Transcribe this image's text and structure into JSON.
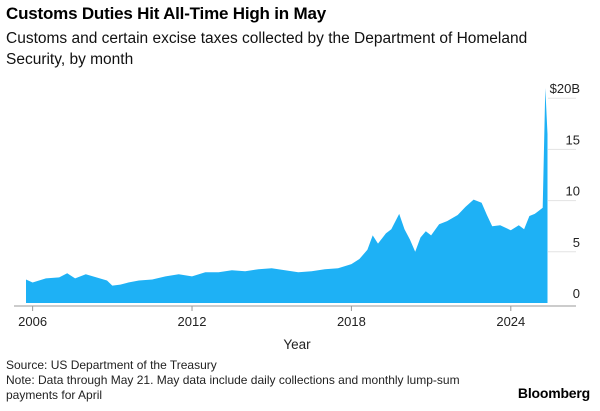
{
  "title": "Customs Duties Hit All-Time High in May",
  "subtitle": "Customs and certain excise taxes collected by the Department of Homeland Security, by month",
  "source": "Source: US Department of the Treasury",
  "note": "Note: Data through May 21. May data include daily collections and monthly lump-sum payments for April",
  "brand": "Bloomberg",
  "colors": {
    "area": "#1EB1F5",
    "grid": "#E3E3E3",
    "axis": "#999999"
  },
  "chart_data": {
    "type": "area",
    "title": "Customs Duties Hit All-Time High in May",
    "subtitle": "Customs and certain excise taxes collected by the Department of Homeland Security, by month",
    "xlabel": "Year",
    "ylabel": "",
    "xlim": [
      2005.6,
      2025.4
    ],
    "ylim": [
      0,
      21
    ],
    "x_ticks": [
      2006,
      2012,
      2018,
      2024
    ],
    "x_tick_labels": [
      "2006",
      "2012",
      "2018",
      "2024"
    ],
    "y_ticks": [
      0,
      5,
      10,
      15,
      20
    ],
    "y_tick_labels": [
      "0",
      "5",
      "10",
      "15",
      "$20B"
    ],
    "grid": "horizontal",
    "series": [
      {
        "points": [
          [
            2005.75,
            2.3
          ],
          [
            2006.0,
            2.0
          ],
          [
            2006.5,
            2.4
          ],
          [
            2007.0,
            2.5
          ],
          [
            2007.3,
            2.9
          ],
          [
            2007.6,
            2.4
          ],
          [
            2008.0,
            2.8
          ],
          [
            2008.4,
            2.5
          ],
          [
            2008.8,
            2.2
          ],
          [
            2009.0,
            1.7
          ],
          [
            2009.3,
            1.8
          ],
          [
            2009.6,
            2.0
          ],
          [
            2010.0,
            2.2
          ],
          [
            2010.5,
            2.3
          ],
          [
            2011.0,
            2.6
          ],
          [
            2011.5,
            2.8
          ],
          [
            2012.0,
            2.6
          ],
          [
            2012.5,
            3.0
          ],
          [
            2013.0,
            3.0
          ],
          [
            2013.5,
            3.2
          ],
          [
            2014.0,
            3.1
          ],
          [
            2014.5,
            3.3
          ],
          [
            2015.0,
            3.4
          ],
          [
            2015.5,
            3.2
          ],
          [
            2016.0,
            3.0
          ],
          [
            2016.5,
            3.1
          ],
          [
            2017.0,
            3.3
          ],
          [
            2017.5,
            3.4
          ],
          [
            2018.0,
            3.8
          ],
          [
            2018.3,
            4.3
          ],
          [
            2018.6,
            5.2
          ],
          [
            2018.8,
            6.6
          ],
          [
            2019.0,
            5.8
          ],
          [
            2019.3,
            6.8
          ],
          [
            2019.5,
            7.2
          ],
          [
            2019.8,
            8.7
          ],
          [
            2020.0,
            7.2
          ],
          [
            2020.2,
            6.2
          ],
          [
            2020.4,
            5.0
          ],
          [
            2020.6,
            6.4
          ],
          [
            2020.8,
            7.0
          ],
          [
            2021.0,
            6.6
          ],
          [
            2021.3,
            7.7
          ],
          [
            2021.6,
            8.0
          ],
          [
            2022.0,
            8.6
          ],
          [
            2022.3,
            9.4
          ],
          [
            2022.6,
            10.1
          ],
          [
            2022.9,
            9.8
          ],
          [
            2023.1,
            8.6
          ],
          [
            2023.3,
            7.5
          ],
          [
            2023.6,
            7.6
          ],
          [
            2024.0,
            7.1
          ],
          [
            2024.3,
            7.6
          ],
          [
            2024.5,
            7.2
          ],
          [
            2024.7,
            8.5
          ],
          [
            2024.9,
            8.7
          ],
          [
            2025.0,
            8.9
          ],
          [
            2025.2,
            9.3
          ],
          [
            2025.3,
            21.0
          ],
          [
            2025.38,
            16.5
          ]
        ]
      }
    ]
  }
}
